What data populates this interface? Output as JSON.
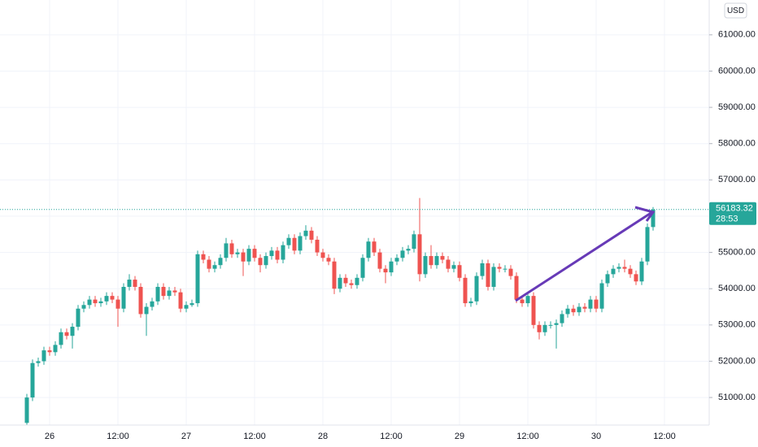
{
  "chart_data": {
    "type": "candlestick",
    "currency": "USD",
    "last_price": 56183.32,
    "countdown": "28:53",
    "up_color": "#26a69a",
    "down_color": "#ef5350",
    "grid": true,
    "ylim": [
      50240,
      61960
    ],
    "yticks": [
      {
        "value": 51000,
        "label": "51000.00"
      },
      {
        "value": 52000,
        "label": "52000.00"
      },
      {
        "value": 53000,
        "label": "53000.00"
      },
      {
        "value": 54000,
        "label": "54000.00"
      },
      {
        "value": 55000,
        "label": "55000.00"
      },
      {
        "value": 56000,
        "label": "56000.00"
      },
      {
        "value": 57000,
        "label": "57000.00"
      },
      {
        "value": 58000,
        "label": "58000.00"
      },
      {
        "value": 59000,
        "label": "59000.00"
      },
      {
        "value": 60000,
        "label": "60000.00"
      },
      {
        "value": 61000,
        "label": "61000.00"
      }
    ],
    "categories": [
      null,
      null,
      null,
      null,
      "26",
      null,
      null,
      null,
      null,
      null,
      null,
      null,
      null,
      null,
      null,
      null,
      "12:00",
      null,
      null,
      null,
      null,
      null,
      null,
      null,
      null,
      null,
      null,
      null,
      "27",
      null,
      null,
      null,
      null,
      null,
      null,
      null,
      null,
      null,
      null,
      null,
      "12:00",
      null,
      null,
      null,
      null,
      null,
      null,
      null,
      null,
      null,
      null,
      null,
      "28",
      null,
      null,
      null,
      null,
      null,
      null,
      null,
      null,
      null,
      null,
      null,
      "12:00",
      null,
      null,
      null,
      null,
      null,
      null,
      null,
      null,
      null,
      null,
      null,
      "29",
      null,
      null,
      null,
      null,
      null,
      null,
      null,
      null,
      null,
      null,
      null,
      "12:00",
      null,
      null,
      null,
      null,
      null,
      null,
      null,
      null,
      null,
      null,
      null,
      "30",
      null,
      null,
      null,
      null,
      null,
      null,
      null,
      null,
      null,
      null,
      null,
      "12:00"
    ],
    "open": [
      50300,
      51000,
      51950,
      52000,
      52300,
      52250,
      52450,
      52800,
      52700,
      52950,
      53450,
      53550,
      53700,
      53600,
      53650,
      53800,
      53700,
      53450,
      54050,
      54250,
      54050,
      53300,
      53500,
      53650,
      54050,
      53800,
      53950,
      53900,
      53450,
      53550,
      53600,
      54950,
      54800,
      54550,
      54650,
      54850,
      55250,
      54950,
      55000,
      54750,
      55100,
      54850,
      54650,
      54900,
      55050,
      54800,
      55200,
      55400,
      55050,
      55450,
      55600,
      55350,
      55000,
      54850,
      54750,
      54000,
      54300,
      54150,
      54100,
      54300,
      54850,
      55300,
      55000,
      54550,
      54450,
      54750,
      54850,
      55050,
      55100,
      55500,
      54400,
      54900,
      54650,
      54900,
      54800,
      54550,
      54650,
      54300,
      53600,
      53650,
      54350,
      54700,
      54050,
      54600,
      54550,
      54550,
      54350,
      53700,
      53600,
      53800,
      53000,
      52800,
      53000,
      53000,
      53050,
      53300,
      53450,
      53350,
      53500,
      53450,
      53700,
      53450,
      54150,
      54400,
      54550,
      54600,
      54550,
      54400,
      54200,
      54750,
      55700,
      null,
      null
    ],
    "high": [
      51100,
      52050,
      52100,
      52400,
      52400,
      52550,
      52900,
      52900,
      53050,
      53550,
      53650,
      53800,
      53800,
      53750,
      53900,
      53900,
      53800,
      54150,
      54400,
      54350,
      54150,
      53600,
      53750,
      54150,
      54150,
      54050,
      54050,
      54000,
      53650,
      53700,
      55050,
      55050,
      54900,
      54750,
      54950,
      55400,
      55350,
      55100,
      55100,
      55200,
      55200,
      54950,
      55000,
      55150,
      55150,
      55300,
      55500,
      55500,
      55550,
      55750,
      55700,
      55450,
      55100,
      54950,
      54850,
      54400,
      54400,
      54250,
      54400,
      54950,
      55400,
      55400,
      55100,
      54650,
      54850,
      54950,
      55150,
      55200,
      55600,
      56500,
      55000,
      55200,
      55000,
      55000,
      54900,
      54750,
      54750,
      54400,
      53750,
      54450,
      54800,
      54800,
      54700,
      54700,
      54650,
      54650,
      54450,
      53800,
      53900,
      53900,
      53100,
      53100,
      53100,
      53150,
      53400,
      53550,
      53550,
      53600,
      53600,
      53800,
      53800,
      54250,
      54500,
      54650,
      54700,
      54800,
      54650,
      54500,
      54850,
      55800,
      56250,
      null,
      null
    ],
    "low": [
      50250,
      50900,
      51850,
      51900,
      52150,
      52150,
      52350,
      52600,
      52350,
      52850,
      53350,
      53450,
      53500,
      53500,
      53550,
      53600,
      52950,
      53350,
      53950,
      53950,
      53200,
      52700,
      53400,
      53550,
      53700,
      53700,
      53800,
      53350,
      53350,
      53500,
      53500,
      54700,
      54450,
      54450,
      54550,
      54750,
      54850,
      54850,
      54350,
      54650,
      54750,
      54450,
      54550,
      54800,
      54700,
      54700,
      55100,
      54950,
      54950,
      55350,
      55250,
      54900,
      54750,
      54650,
      53850,
      53900,
      54050,
      54000,
      54000,
      54200,
      54750,
      54900,
      54450,
      54150,
      54350,
      54650,
      54750,
      54950,
      55000,
      54200,
      54300,
      54550,
      54550,
      54700,
      54450,
      54450,
      54200,
      53500,
      53500,
      53550,
      54250,
      53950,
      53950,
      54450,
      54450,
      54250,
      53600,
      53500,
      53500,
      52900,
      52600,
      52700,
      52900,
      52350,
      52950,
      53200,
      53250,
      53250,
      53350,
      53350,
      53350,
      53350,
      54050,
      54300,
      54450,
      54450,
      54300,
      54100,
      54100,
      54650,
      55600,
      null,
      null
    ],
    "close": [
      51000,
      51950,
      52000,
      52300,
      52250,
      52450,
      52800,
      52700,
      52950,
      53450,
      53550,
      53700,
      53600,
      53650,
      53800,
      53700,
      53450,
      54050,
      54250,
      54050,
      53300,
      53500,
      53650,
      54050,
      53800,
      53950,
      53900,
      53450,
      53550,
      53600,
      54950,
      54800,
      54550,
      54650,
      54850,
      55250,
      54950,
      55000,
      54750,
      55100,
      54850,
      54650,
      54900,
      55050,
      54800,
      55200,
      55400,
      55050,
      55450,
      55600,
      55350,
      55000,
      54850,
      54750,
      54000,
      54300,
      54150,
      54100,
      54300,
      54850,
      55300,
      55000,
      54550,
      54450,
      54750,
      54850,
      55050,
      55100,
      55500,
      54400,
      54900,
      54650,
      54900,
      54800,
      54550,
      54650,
      54300,
      53600,
      53650,
      54350,
      54700,
      54050,
      54600,
      54550,
      54550,
      54350,
      53700,
      53600,
      53800,
      53000,
      52800,
      53000,
      53000,
      53050,
      53300,
      53450,
      53350,
      53500,
      53450,
      53700,
      53450,
      54150,
      54400,
      54550,
      54600,
      54550,
      54400,
      54200,
      54750,
      55700,
      56183.32,
      null,
      null
    ]
  }
}
